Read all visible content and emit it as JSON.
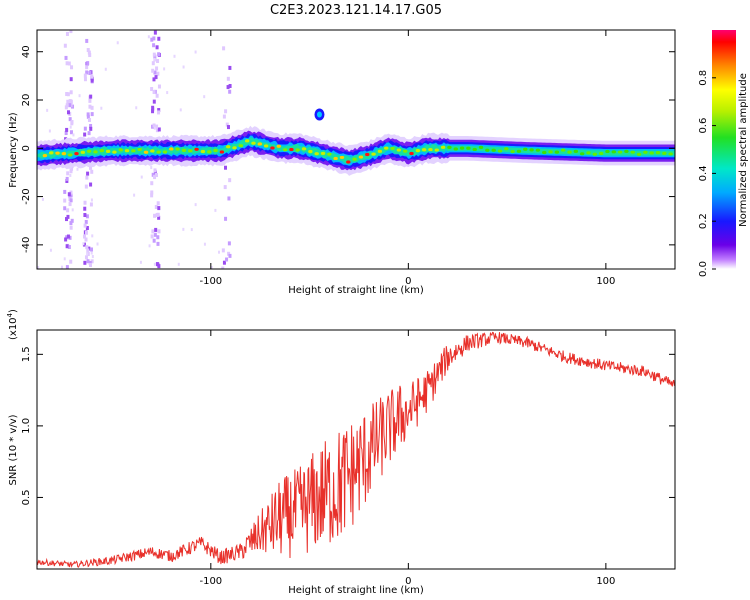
{
  "title": "C2E3.2023.121.14.17.G05",
  "chart_data": [
    {
      "type": "heatmap",
      "xlabel": "Height of straight line (km)",
      "ylabel": "Frequency (Hz)",
      "xlim": [
        -188,
        135
      ],
      "ylim": [
        -50,
        49
      ],
      "xticks": [
        -100,
        0,
        100
      ],
      "yticks": [
        -40,
        -20,
        0,
        20,
        40
      ],
      "colorbar": {
        "label": "Normalized spectral amplitude",
        "range": [
          0,
          1
        ],
        "ticks": [
          "0.0",
          "0.2",
          "0.4",
          "0.6",
          "0.8"
        ]
      },
      "ridge": [
        {
          "x": -188,
          "y": -3
        },
        {
          "x": -170,
          "y": -2
        },
        {
          "x": -150,
          "y": -1
        },
        {
          "x": -130,
          "y": -1
        },
        {
          "x": -110,
          "y": -1
        },
        {
          "x": -95,
          "y": -1
        },
        {
          "x": -80,
          "y": 3
        },
        {
          "x": -65,
          "y": 0
        },
        {
          "x": -55,
          "y": 0
        },
        {
          "x": -45,
          "y": -2
        },
        {
          "x": -30,
          "y": -5
        },
        {
          "x": -20,
          "y": -3
        },
        {
          "x": -10,
          "y": 0
        },
        {
          "x": 0,
          "y": -2
        },
        {
          "x": 10,
          "y": 0
        },
        {
          "x": 30,
          "y": 0
        },
        {
          "x": 60,
          "y": -1
        },
        {
          "x": 100,
          "y": -2
        },
        {
          "x": 135,
          "y": -2
        }
      ],
      "blob": {
        "x": -45,
        "y": 14
      },
      "noise_columns_x": [
        -172,
        -162,
        -128,
        -92
      ]
    },
    {
      "type": "line",
      "xlabel": "Height of straight line (km)",
      "ylabel": "SNR (10 * v/v)",
      "y_multiplier": "(x10",
      "y_multiplier_exp": "4",
      "y_multiplier_close": ")",
      "xlim": [
        -188,
        135
      ],
      "ylim": [
        0,
        16700
      ],
      "xticks": [
        -100,
        0,
        100
      ],
      "yticks": [
        {
          "value": 5000,
          "label": "0.5"
        },
        {
          "value": 10000,
          "label": "1.0"
        },
        {
          "value": 15000,
          "label": "1.5"
        }
      ],
      "color": "#e8302a",
      "series": [
        {
          "x": [
            -188,
            -170,
            -150,
            -130,
            -120,
            -105,
            -95,
            -85,
            -75,
            -65,
            -55,
            -45,
            -35,
            -25,
            -15,
            -5,
            0,
            10,
            20,
            30,
            45,
            60,
            80,
            100,
            120,
            135
          ],
          "y": [
            500,
            300,
            600,
            1200,
            900,
            1800,
            800,
            1200,
            2500,
            3500,
            4000,
            5000,
            5800,
            7200,
            9000,
            10500,
            11000,
            12500,
            14800,
            15800,
            16200,
            15800,
            14800,
            14200,
            13800,
            12800
          ],
          "noise": [
            200,
            200,
            300,
            400,
            400,
            500,
            500,
            600,
            1500,
            2800,
            3200,
            3800,
            4200,
            3800,
            3000,
            2500,
            2000,
            1500,
            1000,
            600,
            400,
            400,
            400,
            400,
            400,
            400
          ]
        }
      ]
    }
  ]
}
